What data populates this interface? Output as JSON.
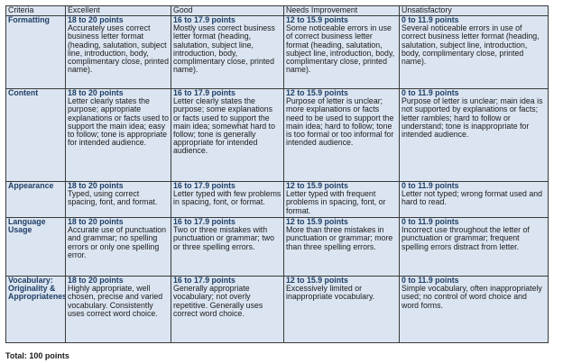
{
  "headers": [
    "Criteria",
    "Excellent",
    "Good",
    "Needs Improvement",
    "Unsatisfactory"
  ],
  "rows": [
    {
      "criterion": "Formatting",
      "cells": [
        {
          "points": "18 to 20 points",
          "text": "Accurately uses correct business letter format (heading, salutation, subject line, introduction, body, complimentary close, printed name)."
        },
        {
          "points": "16 to 17.9 points",
          "text": "Mostly uses correct business letter format (heading, salutation, subject line, introduction, body, complimentary close, printed name)."
        },
        {
          "points": "12 to 15.9 points",
          "text": "Some noticeable errors in use of correct business letter format (heading, salutation, subject line, introduction, body, complimentary close, printed name)."
        },
        {
          "points": "0 to 11.9 points",
          "text": "Several noticeable errors in use of correct business letter format (heading, salutation, subject line, introduction, body, complimentary close, printed name)."
        }
      ]
    },
    {
      "criterion": "Content",
      "cells": [
        {
          "points": "18 to 20 points",
          "text": "Letter clearly states the purpose; appropriate explanations or facts used to support the main idea; easy to follow; tone is appropriate for intended audience."
        },
        {
          "points": "16 to 17.9 points",
          "text": "Letter clearly states the purpose; some explanations or facts used to support the main idea; somewhat hard to follow; tone is generally appropriate for intended audience."
        },
        {
          "points": "12 to 15.9 points",
          "text": "Purpose of letter is unclear; more explanations or facts need to be used to support the main idea; hard to follow; tone is too formal or too informal for intended audience."
        },
        {
          "points": "0 to 11.9 points",
          "text": "Purpose of letter is unclear; main idea is not supported by explanations or facts; letter rambles; hard to follow or understand; tone is inappropriate for intended audience."
        }
      ]
    },
    {
      "criterion": "Appearance",
      "cells": [
        {
          "points": "18 to 20 points",
          "text": "Typed, using correct spacing, font, and format."
        },
        {
          "points": "16 to 17.9 points",
          "text": "Letter typed with few problems in spacing, font, or format."
        },
        {
          "points": "12 to 15.9 points",
          "text": "Letter typed with frequent problems in spacing, font, or format."
        },
        {
          "points": "0 to 11.9 points",
          "text": "Letter not typed; wrong format used and hard to read."
        }
      ]
    },
    {
      "criterion": "Language Usage",
      "cells": [
        {
          "points": "18 to 20 points",
          "text": "Accurate use of punctuation and grammar; no spelling errors or only one spelling error."
        },
        {
          "points": "16 to 17.9 points",
          "text": "Two or three mistakes with punctuation or grammar; two or three spelling errors."
        },
        {
          "points": "12 to 15.9 points",
          "text": "More than three mistakes in punctuation or grammar; more than three spelling errors."
        },
        {
          "points": "0 to 11.9 points",
          "text": "Incorrect use throughout the letter of punctuation or grammar; frequent spelling errors distract from letter."
        }
      ]
    },
    {
      "criterion": "Vocabulary: Originality & Appropriateness",
      "cells": [
        {
          "points": "18 to 20 points",
          "text": "Highly appropriate, well chosen, precise and varied vocabulary. Consistently uses correct word choice."
        },
        {
          "points": "16 to 17.9 points",
          "text": "Generally appropriate vocabulary; not overly repetitive. Generally uses correct word choice."
        },
        {
          "points": "12 to 15.9 points",
          "text": "Excessively limited or inappropriate vocabulary."
        },
        {
          "points": "0 to 11.9 points",
          "text": "Simple vocabulary, often inappropriately used; no control of word choice and word forms."
        }
      ]
    }
  ],
  "total": "Total: 100 points"
}
